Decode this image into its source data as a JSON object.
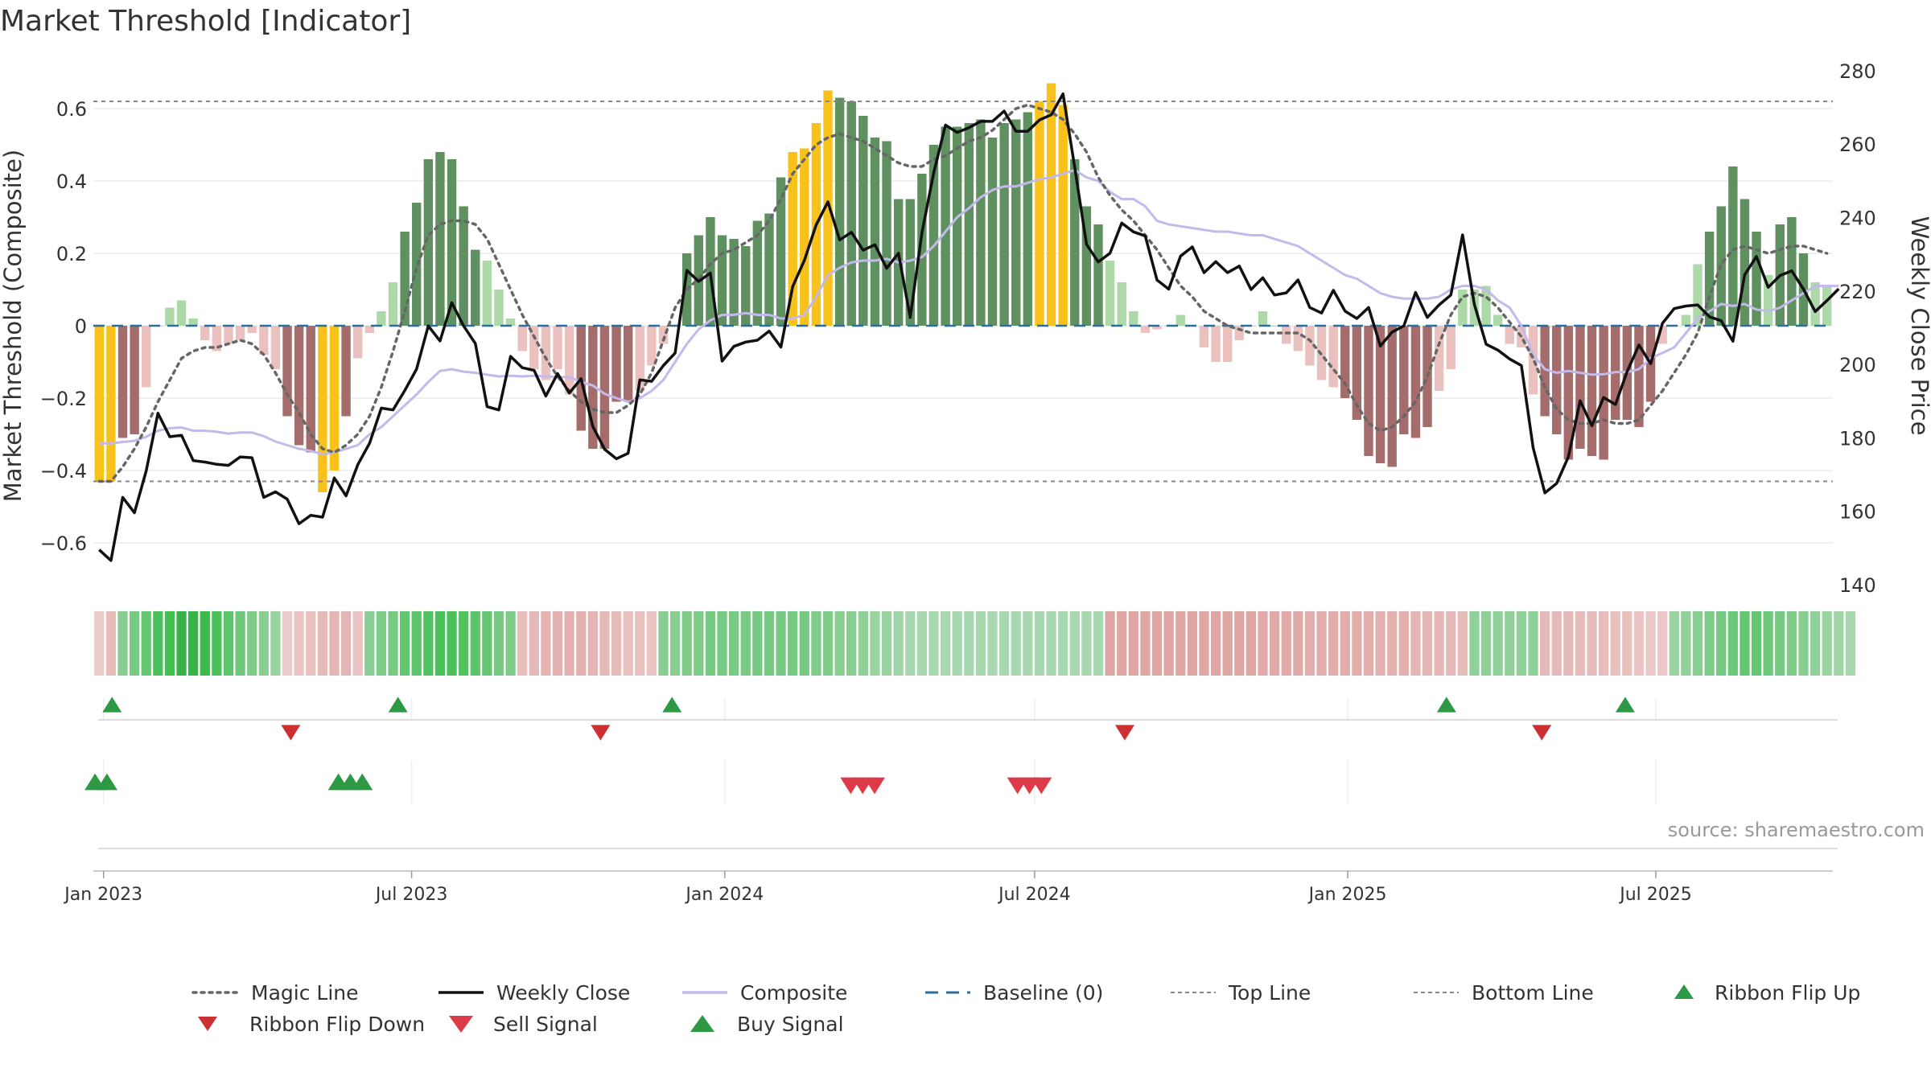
{
  "chart_data": {
    "type": "bar",
    "title": "Market Threshold [Indicator]",
    "ylabel": "Market Threshold (Composite)",
    "y2label": "Weekly Close Price",
    "ylim": [
      -0.72,
      0.72
    ],
    "y_ticks": [
      -0.6,
      -0.4,
      -0.2,
      0,
      0.2,
      0.4,
      0.6
    ],
    "y_tick_labels": [
      "−0.6",
      "−0.4",
      "−0.2",
      "0",
      "0.2",
      "0.4",
      "0.6"
    ],
    "y2lim": [
      140,
      280
    ],
    "y2_ticks": [
      140,
      160,
      180,
      200,
      220,
      240,
      260,
      280
    ],
    "x_date_range": [
      "2022-12-26",
      "2025-10-13"
    ],
    "x_ticks": [
      {
        "date": "2023-01-01",
        "label": "Jan 2023"
      },
      {
        "date": "2023-07-01",
        "label": "Jul 2023"
      },
      {
        "date": "2024-01-01",
        "label": "Jan 2024"
      },
      {
        "date": "2024-07-01",
        "label": "Jul 2024"
      },
      {
        "date": "2025-01-01",
        "label": "Jan 2025"
      },
      {
        "date": "2025-07-01",
        "label": "Jul 2025"
      }
    ],
    "top_line": 0.62,
    "bottom_line": -0.43,
    "source": "source: sharemaestro.com",
    "colors": {
      "highlight": "#f8c21b",
      "pos_strong": "#5f9060",
      "pos_weak": "#add8a8",
      "neg_strong": "#a46c6a",
      "neg_weak": "#eac1be",
      "weekly_close": "#111111",
      "composite": "#c3b9ea",
      "magic_line": "#666666",
      "baseline": "#2a6f9e",
      "threshold_line": "#888888",
      "buy": "#2e9944",
      "sell": "#d33a3a"
    },
    "composite_bars": [
      -0.43,
      -0.43,
      -0.31,
      -0.3,
      -0.17,
      0.0,
      0.05,
      0.07,
      0.02,
      -0.04,
      -0.07,
      -0.05,
      -0.04,
      -0.02,
      -0.08,
      -0.12,
      -0.25,
      -0.33,
      -0.35,
      -0.46,
      -0.4,
      -0.25,
      -0.09,
      -0.02,
      0.04,
      0.12,
      0.26,
      0.34,
      0.46,
      0.48,
      0.46,
      0.33,
      0.21,
      0.18,
      0.1,
      0.02,
      -0.07,
      -0.12,
      -0.15,
      -0.12,
      -0.19,
      -0.29,
      -0.34,
      -0.34,
      -0.21,
      -0.21,
      -0.18,
      -0.11,
      -0.05,
      0.0,
      0.2,
      0.25,
      0.3,
      0.25,
      0.24,
      0.22,
      0.29,
      0.31,
      0.41,
      0.48,
      0.49,
      0.56,
      0.65,
      0.63,
      0.62,
      0.58,
      0.52,
      0.51,
      0.35,
      0.35,
      0.42,
      0.5,
      0.55,
      0.55,
      0.56,
      0.57,
      0.52,
      0.56,
      0.57,
      0.59,
      0.62,
      0.67,
      0.61,
      0.46,
      0.33,
      0.28,
      0.18,
      0.12,
      0.04,
      -0.02,
      -0.01,
      0.0,
      0.03,
      0.0,
      -0.06,
      -0.1,
      -0.1,
      -0.04,
      0.0,
      0.04,
      0.0,
      -0.05,
      -0.07,
      -0.11,
      -0.15,
      -0.17,
      -0.2,
      -0.26,
      -0.36,
      -0.38,
      -0.39,
      -0.3,
      -0.31,
      -0.28,
      -0.18,
      -0.12,
      0.1,
      0.1,
      0.11,
      0.03,
      -0.05,
      -0.06,
      -0.19,
      -0.25,
      -0.3,
      -0.37,
      -0.34,
      -0.36,
      -0.37,
      -0.26,
      -0.26,
      -0.28,
      -0.21,
      -0.05,
      0.0,
      0.03,
      0.17,
      0.26,
      0.33,
      0.44,
      0.35,
      0.26,
      0.14,
      0.28,
      0.3,
      0.2,
      0.12,
      0.11
    ],
    "highlight_indices": [
      0,
      1,
      19,
      20,
      59,
      60,
      61,
      62,
      80,
      81,
      82
    ],
    "weekly_close": [
      149.5,
      146.6,
      163.8,
      159.6,
      171.0,
      186.7,
      180.3,
      180.7,
      173.8,
      173.4,
      172.8,
      172.5,
      174.8,
      174.6,
      163.8,
      165.3,
      163.3,
      156.6,
      158.9,
      158.4,
      169.1,
      164.2,
      172.7,
      178.5,
      188.1,
      187.6,
      192.9,
      198.7,
      210.5,
      206.4,
      216.8,
      210.5,
      205.7,
      188.5,
      187.6,
      202.2,
      199.1,
      198.4,
      191.4,
      197.5,
      192.2,
      196.1,
      183.1,
      176.9,
      174.3,
      175.8,
      195.8,
      195.4,
      199.7,
      203.1,
      225.6,
      222.6,
      224.9,
      200.9,
      204.9,
      206.1,
      206.6,
      209.1,
      204.7,
      221.2,
      228.4,
      238.0,
      244.3,
      233.9,
      236.0,
      231.1,
      232.6,
      226.2,
      230.3,
      212.8,
      235.9,
      252.2,
      265.2,
      263.2,
      264.5,
      266.2,
      266.2,
      269.0,
      263.5,
      263.5,
      266.6,
      268.0,
      273.7,
      253.6,
      232.7,
      227.9,
      230.3,
      238.5,
      236.1,
      235.0,
      223.0,
      220.5,
      229.5,
      232.0,
      225.0,
      228.0,
      225.0,
      226.8,
      220.4,
      223.6,
      218.9,
      219.5,
      223.0,
      215.5,
      214.0,
      220.2,
      214.5,
      212.5,
      215.5,
      205.0,
      208.8,
      210.5,
      219.6,
      212.8,
      216.2,
      218.9,
      235.3,
      216.3,
      205.5,
      203.9,
      201.5,
      199.7,
      177.3,
      165.0,
      167.6,
      174.8,
      190.1,
      183.3,
      191.0,
      189.1,
      198.1,
      205.3,
      200.2,
      211.2,
      215.2,
      215.9,
      216.2,
      213.0,
      211.9,
      206.3,
      224.4,
      229.4,
      221.0,
      224.2,
      225.5,
      220.5,
      214.4,
      217.4,
      220.6
    ],
    "composite_line": [
      -0.325,
      -0.325,
      -0.321,
      -0.318,
      -0.307,
      -0.29,
      -0.283,
      -0.281,
      -0.29,
      -0.29,
      -0.293,
      -0.298,
      -0.295,
      -0.295,
      -0.305,
      -0.32,
      -0.33,
      -0.34,
      -0.346,
      -0.355,
      -0.35,
      -0.34,
      -0.33,
      -0.3,
      -0.28,
      -0.25,
      -0.22,
      -0.19,
      -0.155,
      -0.125,
      -0.12,
      -0.127,
      -0.13,
      -0.135,
      -0.14,
      -0.138,
      -0.14,
      -0.138,
      -0.14,
      -0.142,
      -0.142,
      -0.155,
      -0.165,
      -0.188,
      -0.2,
      -0.21,
      -0.2,
      -0.18,
      -0.15,
      -0.1,
      -0.05,
      -0.01,
      0.015,
      0.03,
      0.03,
      0.035,
      0.03,
      0.03,
      0.02,
      0.02,
      0.03,
      0.08,
      0.14,
      0.16,
      0.175,
      0.18,
      0.18,
      0.185,
      0.175,
      0.18,
      0.19,
      0.22,
      0.26,
      0.3,
      0.325,
      0.355,
      0.375,
      0.385,
      0.385,
      0.395,
      0.405,
      0.41,
      0.42,
      0.43,
      0.41,
      0.4,
      0.37,
      0.35,
      0.35,
      0.33,
      0.29,
      0.28,
      0.275,
      0.27,
      0.265,
      0.26,
      0.26,
      0.255,
      0.25,
      0.25,
      0.24,
      0.23,
      0.22,
      0.2,
      0.18,
      0.16,
      0.14,
      0.13,
      0.11,
      0.09,
      0.08,
      0.075,
      0.075,
      0.075,
      0.08,
      0.1,
      0.11,
      0.11,
      0.1,
      0.07,
      0.05,
      0.0,
      -0.08,
      -0.12,
      -0.13,
      -0.125,
      -0.13,
      -0.135,
      -0.134,
      -0.128,
      -0.128,
      -0.12,
      -0.09,
      -0.075,
      -0.06,
      -0.02,
      0.02,
      0.04,
      0.06,
      0.055,
      0.06,
      0.045,
      0.04,
      0.05,
      0.07,
      0.09,
      0.11,
      0.11,
      0.11
    ],
    "magic_line": [
      -0.43,
      -0.43,
      -0.39,
      -0.34,
      -0.28,
      -0.21,
      -0.15,
      -0.09,
      -0.07,
      -0.06,
      -0.06,
      -0.05,
      -0.04,
      -0.05,
      -0.08,
      -0.13,
      -0.19,
      -0.24,
      -0.3,
      -0.34,
      -0.35,
      -0.33,
      -0.3,
      -0.25,
      -0.17,
      -0.07,
      0.04,
      0.16,
      0.25,
      0.28,
      0.29,
      0.29,
      0.28,
      0.24,
      0.17,
      0.1,
      0.03,
      -0.03,
      -0.09,
      -0.14,
      -0.18,
      -0.21,
      -0.23,
      -0.24,
      -0.24,
      -0.22,
      -0.19,
      -0.13,
      -0.04,
      0.05,
      0.1,
      0.13,
      0.17,
      0.2,
      0.21,
      0.23,
      0.25,
      0.29,
      0.35,
      0.42,
      0.46,
      0.5,
      0.52,
      0.53,
      0.52,
      0.51,
      0.49,
      0.47,
      0.45,
      0.44,
      0.44,
      0.46,
      0.47,
      0.49,
      0.51,
      0.52,
      0.54,
      0.57,
      0.6,
      0.61,
      0.6,
      0.59,
      0.57,
      0.53,
      0.48,
      0.41,
      0.36,
      0.32,
      0.29,
      0.25,
      0.21,
      0.16,
      0.11,
      0.08,
      0.04,
      0.02,
      0.0,
      -0.01,
      -0.02,
      -0.02,
      -0.02,
      -0.02,
      -0.02,
      -0.04,
      -0.08,
      -0.12,
      -0.16,
      -0.22,
      -0.27,
      -0.29,
      -0.28,
      -0.25,
      -0.21,
      -0.14,
      -0.05,
      0.03,
      0.08,
      0.09,
      0.08,
      0.05,
      0.01,
      -0.03,
      -0.09,
      -0.17,
      -0.23,
      -0.26,
      -0.27,
      -0.27,
      -0.26,
      -0.27,
      -0.27,
      -0.26,
      -0.22,
      -0.18,
      -0.13,
      -0.08,
      -0.02,
      0.08,
      0.17,
      0.21,
      0.22,
      0.21,
      0.2,
      0.21,
      0.22,
      0.22,
      0.21,
      0.2
    ],
    "ribbon": [
      -0.2,
      -0.4,
      0.5,
      0.6,
      0.7,
      0.85,
      0.9,
      1.0,
      1.0,
      0.95,
      0.85,
      0.75,
      0.65,
      0.55,
      0.5,
      0.4,
      -0.2,
      -0.3,
      -0.35,
      -0.45,
      -0.5,
      -0.5,
      -0.3,
      0.5,
      0.55,
      0.6,
      0.7,
      0.75,
      0.8,
      0.85,
      0.85,
      0.8,
      0.75,
      0.7,
      0.6,
      0.55,
      -0.4,
      -0.45,
      -0.5,
      -0.55,
      -0.55,
      -0.55,
      -0.5,
      -0.45,
      -0.4,
      -0.35,
      -0.35,
      -0.3,
      0.5,
      0.5,
      0.55,
      0.55,
      0.6,
      0.6,
      0.6,
      0.6,
      0.6,
      0.6,
      0.6,
      0.6,
      0.6,
      0.55,
      0.55,
      0.5,
      0.5,
      0.45,
      0.4,
      0.4,
      0.35,
      0.3,
      0.3,
      0.3,
      0.3,
      0.3,
      0.3,
      0.3,
      0.3,
      0.3,
      0.3,
      0.3,
      0.3,
      0.3,
      0.3,
      0.3,
      0.3,
      0.3,
      -0.7,
      -0.7,
      -0.7,
      -0.7,
      -0.7,
      -0.7,
      -0.7,
      -0.7,
      -0.7,
      -0.7,
      -0.7,
      -0.7,
      -0.7,
      -0.65,
      -0.65,
      -0.65,
      -0.65,
      -0.6,
      -0.6,
      -0.6,
      -0.6,
      -0.6,
      -0.6,
      -0.55,
      -0.55,
      -0.55,
      -0.5,
      -0.5,
      -0.5,
      -0.45,
      -0.4,
      0.45,
      0.45,
      0.45,
      0.45,
      0.45,
      0.45,
      -0.45,
      -0.45,
      -0.45,
      -0.4,
      -0.4,
      -0.4,
      -0.35,
      -0.35,
      -0.3,
      -0.25,
      -0.25,
      0.4,
      0.45,
      0.5,
      0.55,
      0.6,
      0.65,
      0.7,
      0.7,
      0.65,
      0.6,
      0.55,
      0.5,
      0.45,
      0.4,
      0.35,
      0.3
    ],
    "ribbon_flip_up": [
      "2023-01-06",
      "2023-06-23",
      "2023-12-01",
      "2025-02-28",
      "2025-06-13"
    ],
    "ribbon_flip_down": [
      "2023-04-21",
      "2023-10-20",
      "2024-08-23",
      "2025-04-25"
    ],
    "buy_signals": [
      "2022-12-27",
      "2023-01-03",
      "2023-05-19",
      "2023-05-26",
      "2023-06-02"
    ],
    "sell_signals": [
      "2024-03-15",
      "2024-03-22",
      "2024-03-29",
      "2024-06-21",
      "2024-06-28",
      "2024-07-05"
    ],
    "legend": [
      {
        "label": "Magic Line",
        "marker": "dotted-line"
      },
      {
        "label": "Weekly Close",
        "marker": "solid-line"
      },
      {
        "label": "Composite",
        "marker": "lavender-line"
      },
      {
        "label": "Baseline (0)",
        "marker": "dashed-line"
      },
      {
        "label": "Top Line",
        "marker": "thin-dotted-line"
      },
      {
        "label": "Bottom Line",
        "marker": "thin-dotted-line"
      },
      {
        "label": "Ribbon Flip Up",
        "marker": "triangle-up-green"
      },
      {
        "label": "Ribbon Flip Down",
        "marker": "triangle-down-red"
      },
      {
        "label": "Sell Signal",
        "marker": "triangle-down-lightred"
      },
      {
        "label": "Buy Signal",
        "marker": "triangle-up-lightgreen"
      }
    ]
  }
}
